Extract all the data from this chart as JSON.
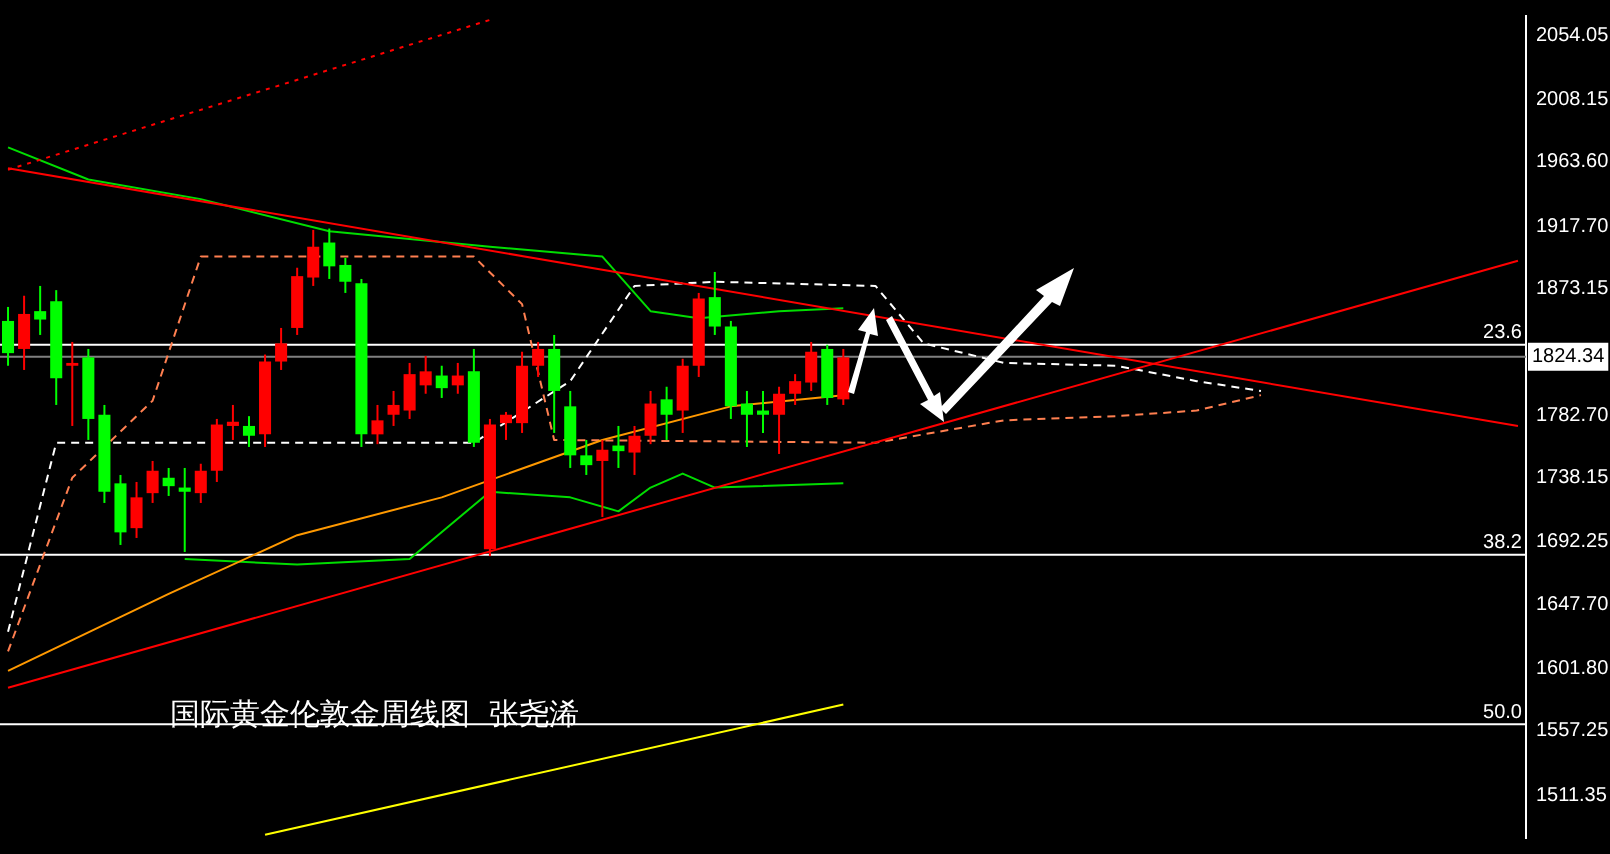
{
  "chart_data": {
    "type": "candlestick",
    "tick_labels": "y",
    "annotations": [
      "国际黄金伦敦金周线图  张尧浠",
      {
        "text": "23.6",
        "y": 1833
      },
      {
        "text": "38.2",
        "y": 1683
      },
      {
        "text": "50.0",
        "y": 1562
      }
    ],
    "categories": [
      null,
      null,
      null,
      null,
      null,
      null,
      null,
      null,
      null,
      null,
      null,
      null,
      null,
      null,
      null,
      null,
      null,
      null,
      null,
      null,
      null,
      null,
      null,
      null,
      null,
      null,
      null,
      null,
      null,
      null,
      null,
      null,
      null,
      null,
      null,
      null,
      null,
      null,
      null,
      null,
      null,
      null,
      null,
      null,
      null,
      null,
      null,
      null,
      null,
      null,
      null,
      null,
      null,
      null,
      null,
      null,
      null,
      null,
      null,
      null,
      null,
      null,
      null,
      null,
      null,
      null,
      null,
      null,
      null,
      null,
      null,
      null,
      null,
      null,
      null,
      null,
      null,
      null,
      null,
      null,
      null,
      null,
      null,
      null,
      null,
      null,
      null,
      null,
      null,
      null,
      null,
      null,
      null,
      null,
      null
    ],
    "ylim": [
      1480.7,
      2067.8
    ],
    "yticks": [
      2054.05,
      {
        "value": 2008.15,
        "label": "2008.15"
      },
      {
        "value": 1963.6,
        "label": "1963.60"
      },
      {
        "value": 1917.7,
        "label": "1917.70"
      },
      1873.15,
      {
        "value": 1782.7,
        "label": "1782.70"
      },
      1738.15,
      1692.25,
      {
        "value": 1647.7,
        "label": "1647.70"
      },
      {
        "value": 1601.8,
        "label": "1601.80"
      },
      1557.25,
      1511.35
    ],
    "ref_lines": [
      {
        "axis": "y",
        "value": 1833,
        "color": "#ffffff"
      },
      {
        "axis": "y",
        "value": 1683,
        "color": "#ffffff"
      },
      {
        "axis": "y",
        "value": 1562,
        "color": "#ffffff"
      },
      {
        "axis": "y",
        "value": 1824.34,
        "label": "1824.34",
        "color": "#808080"
      }
    ],
    "ohlc": [
      [
        1850,
        1860,
        1818,
        1827
      ],
      [
        1830,
        1868,
        1815,
        1855
      ],
      [
        1857,
        1875,
        1840,
        1851
      ],
      [
        1864,
        1872,
        1790,
        1809
      ],
      [
        1818,
        1835,
        1775,
        1820
      ],
      [
        1824,
        1830,
        1765,
        1780
      ],
      [
        1783,
        1790,
        1720,
        1728
      ],
      [
        1734,
        1740,
        1690,
        1699
      ],
      [
        1702,
        1735,
        1695,
        1724
      ],
      [
        1727,
        1750,
        1720,
        1743
      ],
      [
        1738,
        1745,
        1725,
        1732
      ],
      [
        1731,
        1745,
        1685,
        1728
      ],
      [
        1727,
        1748,
        1720,
        1743
      ],
      [
        1743,
        1780,
        1735,
        1776
      ],
      [
        1775,
        1790,
        1765,
        1778
      ],
      [
        1775,
        1782,
        1760,
        1768
      ],
      [
        1769,
        1826,
        1760,
        1821
      ],
      [
        1821,
        1845,
        1815,
        1834
      ],
      [
        1845,
        1888,
        1840,
        1882
      ],
      [
        1881,
        1915,
        1875,
        1903
      ],
      [
        1906,
        1916,
        1880,
        1889
      ],
      [
        1890,
        1895,
        1870,
        1878
      ],
      [
        1877,
        1880,
        1760,
        1769
      ],
      [
        1769,
        1790,
        1762,
        1779
      ],
      [
        1783,
        1800,
        1775,
        1790
      ],
      [
        1786,
        1820,
        1780,
        1812
      ],
      [
        1804,
        1825,
        1798,
        1814
      ],
      [
        1811,
        1818,
        1795,
        1802
      ],
      [
        1804,
        1820,
        1798,
        1811
      ],
      [
        1814,
        1830,
        1760,
        1763
      ],
      [
        1687,
        1780,
        1682,
        1776
      ],
      [
        1777,
        1785,
        1765,
        1783
      ],
      [
        1777,
        1828,
        1770,
        1818
      ],
      [
        1818,
        1835,
        1810,
        1830
      ],
      [
        1830,
        1840,
        1770,
        1800
      ],
      [
        1789,
        1800,
        1745,
        1754
      ],
      [
        1754,
        1765,
        1740,
        1747
      ],
      [
        1750,
        1765,
        1710,
        1758
      ],
      [
        1761,
        1775,
        1745,
        1757
      ],
      [
        1756,
        1775,
        1740,
        1768
      ],
      [
        1768,
        1800,
        1762,
        1791
      ],
      [
        1794,
        1803,
        1765,
        1783
      ],
      [
        1786,
        1823,
        1770,
        1818
      ],
      [
        1818,
        1870,
        1810,
        1866
      ],
      [
        1867,
        1885,
        1840,
        1846
      ],
      [
        1846,
        1850,
        1780,
        1789
      ],
      [
        1791,
        1800,
        1760,
        1783
      ],
      [
        1786,
        1800,
        1770,
        1783
      ],
      [
        1783,
        1803,
        1755,
        1798
      ],
      [
        1798,
        1812,
        1790,
        1807
      ],
      [
        1806,
        1835,
        1800,
        1828
      ],
      [
        1830,
        1833,
        1790,
        1795
      ],
      [
        1794,
        1830,
        1790,
        1824
      ],
      null,
      null,
      null,
      null,
      null,
      null,
      null,
      null,
      null,
      null,
      null,
      null,
      null,
      null,
      null,
      null,
      null,
      null,
      null,
      null,
      null,
      null,
      null,
      null,
      null,
      null,
      null,
      null,
      null,
      null,
      null,
      null,
      null,
      null,
      null,
      null,
      null,
      null,
      null,
      null,
      null,
      null
    ],
    "colors": [
      "#00ff00",
      "#ff0000",
      "#00ff00",
      "#00ff00",
      "#ff0000",
      "#00ff00",
      "#00ff00",
      "#00ff00",
      "#ff0000",
      "#ff0000",
      "#00ff00",
      "#00ff00",
      "#ff0000",
      "#ff0000",
      "#ff0000",
      "#00ff00",
      "#ff0000",
      "#ff0000",
      "#ff0000",
      "#ff0000",
      "#00ff00",
      "#00ff00",
      "#00ff00",
      "#ff0000",
      "#ff0000",
      "#ff0000",
      "#ff0000",
      "#00ff00",
      "#ff0000",
      "#00ff00",
      "#ff0000",
      "#ff0000",
      "#ff0000",
      "#ff0000",
      "#00ff00",
      "#00ff00",
      "#00ff00",
      "#ff0000",
      "#00ff00",
      "#ff0000",
      "#ff0000",
      "#00ff00",
      "#ff0000",
      "#ff0000",
      "#00ff00",
      "#00ff00",
      "#00ff00",
      "#00ff00",
      "#ff0000",
      "#ff0000",
      "#ff0000",
      "#00ff00",
      "#ff0000",
      null,
      null,
      null,
      null,
      null,
      null,
      null,
      null,
      null,
      null,
      null,
      null,
      null,
      null,
      null,
      null,
      null,
      null,
      null,
      null,
      null,
      null,
      null,
      null,
      null,
      null,
      null,
      null,
      null,
      null,
      null,
      null,
      null,
      null,
      null,
      null,
      null,
      null,
      null,
      null,
      null,
      null
    ],
    "series": [
      {
        "type": "line",
        "color": "#ff0000",
        "values": [
          1959,
          null,
          null,
          null,
          null,
          null,
          null,
          null,
          null,
          null,
          null,
          null,
          null,
          null,
          null,
          null,
          null,
          null,
          null,
          null,
          null,
          null,
          null,
          null,
          null,
          null,
          null,
          null,
          null,
          null,
          null,
          null,
          null,
          null,
          null,
          null,
          null,
          null,
          null,
          null,
          null,
          null,
          null,
          null,
          null,
          null,
          null,
          null,
          null,
          null,
          null,
          null,
          null,
          null,
          null,
          null,
          null,
          null,
          null,
          null,
          null,
          null,
          null,
          null,
          null,
          null,
          null,
          null,
          null,
          null,
          null,
          null,
          null,
          null,
          null,
          null,
          null,
          null,
          null,
          null,
          null,
          null,
          null,
          null,
          null,
          null,
          null,
          null,
          null,
          null,
          null,
          null,
          null,
          null,
          1775
        ]
      },
      {
        "type": "line",
        "color": "#ff0000",
        "values": [
          1588,
          null,
          null,
          null,
          null,
          null,
          null,
          null,
          null,
          null,
          null,
          null,
          null,
          null,
          null,
          null,
          null,
          null,
          null,
          null,
          null,
          null,
          null,
          null,
          null,
          null,
          null,
          null,
          null,
          null,
          null,
          null,
          null,
          null,
          null,
          null,
          null,
          null,
          null,
          null,
          null,
          null,
          null,
          null,
          null,
          null,
          null,
          null,
          null,
          null,
          null,
          null,
          null,
          null,
          null,
          null,
          null,
          null,
          null,
          null,
          null,
          null,
          null,
          null,
          null,
          null,
          null,
          null,
          null,
          null,
          null,
          null,
          null,
          null,
          null,
          null,
          null,
          null,
          null,
          null,
          null,
          null,
          null,
          null,
          null,
          null,
          null,
          null,
          null,
          null,
          null,
          null,
          null,
          null,
          1893
        ]
      },
      {
        "type": "line",
        "color": "#ff0000",
        "line_style": "dotted",
        "values": [
          1958,
          null,
          null,
          null,
          null,
          null,
          null,
          null,
          null,
          null,
          null,
          null,
          null,
          null,
          null,
          null,
          null,
          null,
          null,
          null,
          null,
          null,
          null,
          null,
          null,
          null,
          null,
          null,
          null,
          null,
          2065,
          null,
          null,
          null,
          null,
          null,
          null,
          null,
          null,
          null,
          null,
          null,
          null,
          null,
          null,
          null,
          null,
          null,
          null,
          null,
          null,
          null,
          null,
          null,
          null,
          null,
          null,
          null,
          null,
          null,
          null,
          null,
          null,
          null,
          null,
          null,
          null,
          null,
          null,
          null,
          null,
          null,
          null,
          null,
          null,
          null,
          null,
          null,
          null,
          null,
          null,
          null,
          null,
          null,
          null,
          null,
          null,
          null,
          null,
          null,
          null,
          null,
          null,
          null,
          null
        ]
      },
      {
        "type": "line",
        "color": "#ffff00",
        "values": [
          null,
          null,
          null,
          null,
          null,
          null,
          null,
          null,
          null,
          null,
          null,
          null,
          null,
          null,
          null,
          null,
          1483,
          null,
          null,
          null,
          null,
          null,
          null,
          null,
          null,
          null,
          null,
          null,
          null,
          null,
          null,
          null,
          null,
          null,
          null,
          null,
          null,
          null,
          null,
          null,
          null,
          null,
          null,
          null,
          null,
          null,
          null,
          null,
          null,
          null,
          null,
          null,
          1576,
          null,
          null,
          null,
          null,
          null,
          null,
          null,
          null,
          null,
          null,
          null,
          null,
          null,
          null,
          null,
          null,
          null,
          null,
          null,
          null,
          null,
          null,
          null,
          null,
          null,
          null,
          null,
          null,
          null,
          null,
          null,
          null,
          null,
          null,
          null,
          null,
          null,
          null,
          null,
          null,
          null,
          null
        ]
      },
      {
        "type": "line",
        "color": "#ff9900",
        "values": [
          1600,
          null,
          null,
          null,
          null,
          null,
          null,
          null,
          null,
          null,
          1655,
          null,
          null,
          null,
          null,
          null,
          null,
          null,
          1697,
          null,
          null,
          null,
          null,
          null,
          null,
          null,
          null,
          1724,
          null,
          null,
          null,
          null,
          null,
          null,
          null,
          null,
          null,
          1765,
          null,
          null,
          null,
          null,
          null,
          null,
          null,
          1789,
          null,
          null,
          null,
          null,
          null,
          null,
          1797,
          null,
          null,
          null,
          null,
          null,
          null,
          null,
          null,
          null,
          null,
          null,
          null,
          null,
          null,
          null,
          null,
          null,
          null,
          null,
          null,
          null,
          null,
          null,
          null,
          null,
          null,
          null,
          null,
          null,
          null,
          null,
          null,
          null,
          null,
          null,
          null,
          null,
          null,
          null,
          null,
          null,
          null
        ]
      },
      {
        "type": "line",
        "color": "#00dd00",
        "values": [
          null,
          null,
          null,
          null,
          null,
          null,
          null,
          null,
          null,
          null,
          null,
          1680,
          null,
          null,
          null,
          null,
          null,
          null,
          1676,
          null,
          null,
          null,
          null,
          null,
          null,
          1680,
          null,
          null,
          null,
          null,
          1728,
          null,
          null,
          null,
          null,
          1724,
          null,
          null,
          1714,
          null,
          1731,
          null,
          1741,
          null,
          1731,
          null,
          null,
          null,
          null,
          null,
          null,
          null,
          1734,
          null,
          null,
          null,
          null,
          null,
          null,
          null,
          null,
          null,
          null,
          null,
          null,
          null,
          null,
          null,
          null,
          null,
          null,
          null,
          null,
          null,
          null,
          null,
          null,
          null,
          null,
          null,
          null,
          null,
          null,
          null,
          null,
          null,
          null,
          null,
          null,
          null,
          null,
          null,
          null,
          null,
          null
        ]
      },
      {
        "type": "line",
        "color": "#00dd00",
        "values": [
          1974,
          null,
          null,
          null,
          null,
          1951,
          null,
          null,
          null,
          null,
          null,
          null,
          1937,
          null,
          null,
          null,
          null,
          null,
          null,
          null,
          1914,
          null,
          null,
          null,
          null,
          null,
          null,
          null,
          null,
          null,
          1903,
          null,
          null,
          null,
          null,
          null,
          null,
          1896,
          null,
          null,
          1857,
          null,
          null,
          1852,
          null,
          null,
          null,
          null,
          1857,
          null,
          null,
          null,
          1859,
          null,
          null,
          null,
          null,
          null,
          null,
          null,
          null,
          null,
          null,
          null,
          null,
          null,
          null,
          null,
          null,
          null,
          null,
          null,
          null,
          null,
          null,
          null,
          null,
          null,
          null,
          null,
          null,
          null,
          null,
          null,
          null,
          null,
          null,
          null,
          null,
          null,
          null,
          null,
          null,
          null,
          null
        ]
      },
      {
        "type": "line",
        "color": "#ffffff",
        "line_style": "dashed",
        "values": [
          1628,
          null,
          null,
          1763,
          null,
          null,
          null,
          null,
          null,
          null,
          1763,
          null,
          null,
          null,
          null,
          null,
          null,
          null,
          null,
          null,
          null,
          null,
          null,
          null,
          null,
          null,
          null,
          null,
          null,
          1763,
          null,
          null,
          null,
          null,
          null,
          1807,
          null,
          null,
          null,
          1875,
          null,
          null,
          null,
          null,
          1878,
          null,
          null,
          null,
          null,
          null,
          null,
          null,
          null,
          null,
          1875,
          null,
          null,
          1834,
          null,
          null,
          null,
          null,
          1820,
          null,
          null,
          null,
          null,
          null,
          null,
          1818,
          null,
          null,
          null,
          null,
          1807,
          null,
          null,
          null,
          1800,
          null,
          null,
          null,
          null,
          null,
          null,
          null,
          null,
          null,
          null,
          null,
          null,
          null,
          null,
          null,
          null
        ]
      },
      {
        "type": "line",
        "color": "#ff7f50",
        "line_style": "dashed",
        "values": [
          1614,
          null,
          null,
          null,
          1738,
          null,
          null,
          null,
          null,
          1793,
          null,
          null,
          1896,
          null,
          null,
          null,
          null,
          null,
          null,
          null,
          null,
          null,
          null,
          null,
          null,
          null,
          null,
          null,
          null,
          1896,
          null,
          null,
          1862,
          null,
          1765,
          null,
          null,
          null,
          null,
          null,
          null,
          null,
          null,
          null,
          null,
          null,
          null,
          null,
          null,
          null,
          null,
          null,
          null,
          null,
          1763,
          null,
          null,
          null,
          null,
          null,
          null,
          null,
          1779,
          null,
          null,
          null,
          null,
          null,
          null,
          1782,
          null,
          null,
          null,
          null,
          1786,
          null,
          null,
          null,
          1797,
          null,
          null,
          null,
          null,
          null,
          null,
          null,
          null,
          null,
          null,
          null,
          null,
          null,
          null,
          null,
          null
        ]
      }
    ]
  }
}
